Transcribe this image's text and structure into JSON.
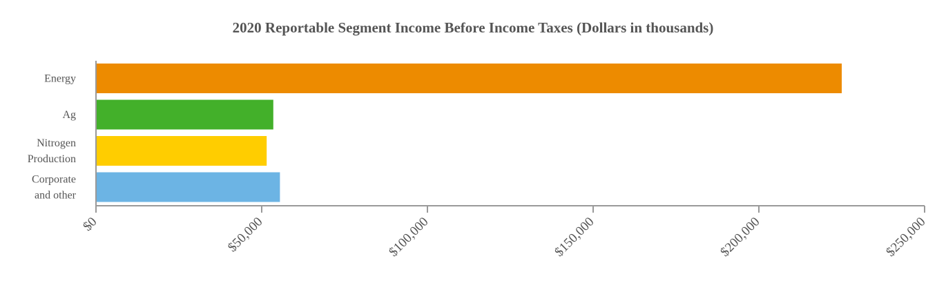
{
  "chart_data": {
    "type": "bar",
    "orientation": "horizontal",
    "title": "2020 Reportable Segment Income Before Income Taxes (Dollars in thousands)",
    "categories": [
      [
        "Energy"
      ],
      [
        "Ag"
      ],
      [
        "Nitrogen",
        "Production"
      ],
      [
        "Corporate",
        "and other"
      ]
    ],
    "values": [
      225000,
      53500,
      51500,
      55500
    ],
    "colors": [
      "#ED8B00",
      "#43B02A",
      "#FFCD00",
      "#6CB4E4"
    ],
    "xlim": [
      0,
      250000
    ],
    "ticks": [
      0,
      50000,
      100000,
      150000,
      200000,
      250000
    ],
    "tick_labels": [
      "$0",
      "$50,000",
      "$100,000",
      "$150,000",
      "$200,000",
      "$250,000"
    ],
    "xlabel": "",
    "ylabel": "",
    "grid": false,
    "legend": "none"
  }
}
